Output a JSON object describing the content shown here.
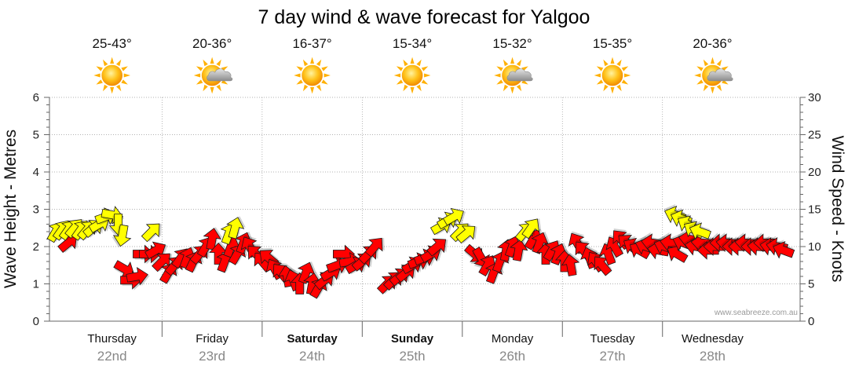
{
  "page_title": "7 day wind & wave forecast for Yalgoo",
  "credit": "www.seabreeze.com.au",
  "colors": {
    "wind_arrow": "#ff0000",
    "wave_arrow": "#ffff00",
    "arrow_stroke": "#1a1a1a",
    "grid": "#999999",
    "axis": "#666666"
  },
  "forecast_days": [
    {
      "temp": "25-43°",
      "icon": "sun-icon",
      "day": "Thursday",
      "date": "22nd",
      "bold": false
    },
    {
      "temp": "20-36°",
      "icon": "sun-cloud-icon",
      "day": "Friday",
      "date": "23rd",
      "bold": false
    },
    {
      "temp": "16-37°",
      "icon": "sun-icon",
      "day": "Saturday",
      "date": "24th",
      "bold": true
    },
    {
      "temp": "15-34°",
      "icon": "sun-icon",
      "day": "Sunday",
      "date": "25th",
      "bold": true
    },
    {
      "temp": "15-32°",
      "icon": "sun-cloud-icon",
      "day": "Monday",
      "date": "26th",
      "bold": false
    },
    {
      "temp": "15-35°",
      "icon": "sun-icon",
      "day": "Tuesday",
      "date": "27th",
      "bold": false
    },
    {
      "temp": "20-36°",
      "icon": "sun-cloud-icon",
      "day": "Wednesday",
      "date": "28th",
      "bold": false
    }
  ],
  "chart_data": {
    "type": "scatter",
    "title": "7 day wind & wave forecast for Yalgoo",
    "ylabel_left": "Wave Height - Metres",
    "ylabel_right": "Wind Speed - Knots",
    "ylim_left": [
      0,
      6
    ],
    "ylim_right": [
      0,
      30
    ],
    "yticks_left": [
      "0",
      "1",
      "2",
      "3",
      "4",
      "5",
      "6"
    ],
    "yticks_right": [
      "0",
      "5",
      "10",
      "15",
      "20",
      "25",
      "30"
    ],
    "x_unit": "hours from start of Thursday",
    "xlim": [
      -6,
      174
    ],
    "day_boundaries": [
      21,
      45,
      69,
      93,
      117,
      141
    ],
    "grid": true,
    "series": [
      {
        "name": "Wave height",
        "axis": "left",
        "points": [
          {
            "x": -4.5,
            "y": 2.4,
            "dir": 210
          },
          {
            "x": -3,
            "y": 2.45,
            "dir": 215
          },
          {
            "x": -1.5,
            "y": 2.45,
            "dir": 215
          },
          {
            "x": 0,
            "y": 2.5,
            "dir": 220
          },
          {
            "x": 1.5,
            "y": 2.45,
            "dir": 215
          },
          {
            "x": 3,
            "y": 2.45,
            "dir": 220
          },
          {
            "x": 4.5,
            "y": 2.5,
            "dir": 230
          },
          {
            "x": 6,
            "y": 2.6,
            "dir": 240
          },
          {
            "x": 7.5,
            "y": 2.8,
            "dir": 250
          },
          {
            "x": 9,
            "y": 2.85,
            "dir": 280
          },
          {
            "x": 10.5,
            "y": 2.6,
            "dir": 0
          },
          {
            "x": 11.5,
            "y": 2.3,
            "dir": 10
          },
          {
            "x": 18.5,
            "y": 2.4,
            "dir": 225
          },
          {
            "x": 37,
            "y": 2.35,
            "dir": 200
          },
          {
            "x": 38.5,
            "y": 2.5,
            "dir": 195
          },
          {
            "x": 88,
            "y": 2.55,
            "dir": 240
          },
          {
            "x": 89.5,
            "y": 2.7,
            "dir": 240
          },
          {
            "x": 91,
            "y": 2.8,
            "dir": 240
          },
          {
            "x": 92.5,
            "y": 2.4,
            "dir": 225
          },
          {
            "x": 94,
            "y": 2.35,
            "dir": 230
          },
          {
            "x": 108,
            "y": 2.4,
            "dir": 220
          },
          {
            "x": 109.5,
            "y": 2.5,
            "dir": 215
          },
          {
            "x": 144,
            "y": 2.85,
            "dir": 110
          },
          {
            "x": 145.5,
            "y": 2.75,
            "dir": 110
          },
          {
            "x": 147,
            "y": 2.6,
            "dir": 120
          },
          {
            "x": 148.5,
            "y": 2.45,
            "dir": 120
          },
          {
            "x": 150,
            "y": 2.4,
            "dir": 110
          }
        ]
      },
      {
        "name": "Wind speed",
        "axis": "right",
        "points": [
          {
            "x": -1.5,
            "y": 10.5,
            "dir": 230
          },
          {
            "x": 12,
            "y": 7,
            "dir": 300
          },
          {
            "x": 13.5,
            "y": 5.5,
            "dir": 270
          },
          {
            "x": 15,
            "y": 6,
            "dir": 260
          },
          {
            "x": 16.5,
            "y": 9,
            "dir": 270
          },
          {
            "x": 18,
            "y": 9,
            "dir": 270
          },
          {
            "x": 19.5,
            "y": 9.5,
            "dir": 240
          },
          {
            "x": 21,
            "y": 8,
            "dir": 225
          },
          {
            "x": 22.5,
            "y": 6.5,
            "dir": 210
          },
          {
            "x": 24,
            "y": 7.5,
            "dir": 220
          },
          {
            "x": 25.5,
            "y": 8.5,
            "dir": 215
          },
          {
            "x": 27,
            "y": 8.5,
            "dir": 200
          },
          {
            "x": 28.5,
            "y": 8,
            "dir": 205
          },
          {
            "x": 30,
            "y": 9,
            "dir": 220
          },
          {
            "x": 31.5,
            "y": 10,
            "dir": 210
          },
          {
            "x": 33,
            "y": 11,
            "dir": 190
          },
          {
            "x": 34.5,
            "y": 9,
            "dir": 180
          },
          {
            "x": 36,
            "y": 8,
            "dir": 200
          },
          {
            "x": 37.5,
            "y": 10,
            "dir": 200
          },
          {
            "x": 39,
            "y": 9,
            "dir": 210
          },
          {
            "x": 40.5,
            "y": 10.5,
            "dir": 200
          },
          {
            "x": 42,
            "y": 10,
            "dir": 150
          },
          {
            "x": 43.5,
            "y": 9,
            "dir": 135
          },
          {
            "x": 45,
            "y": 8,
            "dir": 140
          },
          {
            "x": 46.5,
            "y": 8.5,
            "dir": 130
          },
          {
            "x": 48,
            "y": 7,
            "dir": 150
          },
          {
            "x": 49.5,
            "y": 6.5,
            "dir": 140
          },
          {
            "x": 51,
            "y": 6,
            "dir": 170
          },
          {
            "x": 52.5,
            "y": 5.5,
            "dir": 160
          },
          {
            "x": 54,
            "y": 5,
            "dir": 180
          },
          {
            "x": 55.5,
            "y": 6.5,
            "dir": 200
          },
          {
            "x": 57,
            "y": 5,
            "dir": 190
          },
          {
            "x": 58.5,
            "y": 4.5,
            "dir": 210
          },
          {
            "x": 60,
            "y": 5.5,
            "dir": 230
          },
          {
            "x": 61.5,
            "y": 6.5,
            "dir": 240
          },
          {
            "x": 63,
            "y": 7.5,
            "dir": 250
          },
          {
            "x": 64.5,
            "y": 9,
            "dir": 270
          },
          {
            "x": 66,
            "y": 8,
            "dir": 260
          },
          {
            "x": 67.5,
            "y": 7.5,
            "dir": 240
          },
          {
            "x": 69,
            "y": 8,
            "dir": 230
          },
          {
            "x": 70.5,
            "y": 9,
            "dir": 225
          },
          {
            "x": 72,
            "y": 10,
            "dir": 220
          },
          {
            "x": 75,
            "y": 5,
            "dir": 225
          },
          {
            "x": 76.5,
            "y": 5.5,
            "dir": 225
          },
          {
            "x": 78,
            "y": 6,
            "dir": 230
          },
          {
            "x": 79.5,
            "y": 6.5,
            "dir": 230
          },
          {
            "x": 81,
            "y": 7.5,
            "dir": 240
          },
          {
            "x": 82.5,
            "y": 8,
            "dir": 250
          },
          {
            "x": 84,
            "y": 8.5,
            "dir": 250
          },
          {
            "x": 85.5,
            "y": 9,
            "dir": 240
          },
          {
            "x": 87,
            "y": 10,
            "dir": 230
          },
          {
            "x": 96,
            "y": 9,
            "dir": 310
          },
          {
            "x": 97.5,
            "y": 8.5,
            "dir": 330
          },
          {
            "x": 99,
            "y": 7.5,
            "dir": 210
          },
          {
            "x": 100.5,
            "y": 6.5,
            "dir": 200
          },
          {
            "x": 102,
            "y": 8,
            "dir": 200
          },
          {
            "x": 103.5,
            "y": 9.5,
            "dir": 190
          },
          {
            "x": 105,
            "y": 10,
            "dir": 200
          },
          {
            "x": 106.5,
            "y": 9.5,
            "dir": 190
          },
          {
            "x": 110,
            "y": 11,
            "dir": 210
          },
          {
            "x": 111.5,
            "y": 10.5,
            "dir": 200
          },
          {
            "x": 113,
            "y": 9,
            "dir": 180
          },
          {
            "x": 114.5,
            "y": 9.5,
            "dir": 210
          },
          {
            "x": 116,
            "y": 9,
            "dir": 200
          },
          {
            "x": 117.5,
            "y": 8,
            "dir": 180
          },
          {
            "x": 119,
            "y": 7.5,
            "dir": 170
          },
          {
            "x": 120.5,
            "y": 10.5,
            "dir": 150
          },
          {
            "x": 122,
            "y": 9.5,
            "dir": 140
          },
          {
            "x": 123.5,
            "y": 8.5,
            "dir": 160
          },
          {
            "x": 125,
            "y": 8,
            "dir": 145
          },
          {
            "x": 126.5,
            "y": 7.5,
            "dir": 140
          },
          {
            "x": 128,
            "y": 9,
            "dir": 160
          },
          {
            "x": 129.5,
            "y": 10,
            "dir": 150
          },
          {
            "x": 131,
            "y": 11,
            "dir": 140
          },
          {
            "x": 132.5,
            "y": 10.5,
            "dir": 130
          },
          {
            "x": 134,
            "y": 10,
            "dir": 120
          },
          {
            "x": 135.5,
            "y": 9.5,
            "dir": 120
          },
          {
            "x": 137,
            "y": 10,
            "dir": 110
          },
          {
            "x": 138.5,
            "y": 10.5,
            "dir": 100
          },
          {
            "x": 140,
            "y": 9.5,
            "dir": 100
          },
          {
            "x": 141.5,
            "y": 10,
            "dir": 110
          },
          {
            "x": 143,
            "y": 10.5,
            "dir": 100
          },
          {
            "x": 144.5,
            "y": 9,
            "dir": 120
          },
          {
            "x": 146,
            "y": 10.5,
            "dir": 110
          },
          {
            "x": 147.5,
            "y": 11,
            "dir": 100
          },
          {
            "x": 149,
            "y": 10,
            "dir": 100
          },
          {
            "x": 150.5,
            "y": 10.5,
            "dir": 95
          },
          {
            "x": 152,
            "y": 9.5,
            "dir": 90
          },
          {
            "x": 153.5,
            "y": 10,
            "dir": 90
          },
          {
            "x": 155,
            "y": 10.5,
            "dir": 90
          },
          {
            "x": 156.5,
            "y": 10.5,
            "dir": 95
          },
          {
            "x": 158,
            "y": 10,
            "dir": 90
          },
          {
            "x": 159.5,
            "y": 10,
            "dir": 90
          },
          {
            "x": 161,
            "y": 10.5,
            "dir": 95
          },
          {
            "x": 162.5,
            "y": 10,
            "dir": 90
          },
          {
            "x": 164,
            "y": 10,
            "dir": 95
          },
          {
            "x": 165.5,
            "y": 10.5,
            "dir": 90
          },
          {
            "x": 167,
            "y": 10,
            "dir": 100
          },
          {
            "x": 168.5,
            "y": 10,
            "dir": 100
          },
          {
            "x": 170,
            "y": 9.5,
            "dir": 110
          }
        ]
      }
    ]
  }
}
